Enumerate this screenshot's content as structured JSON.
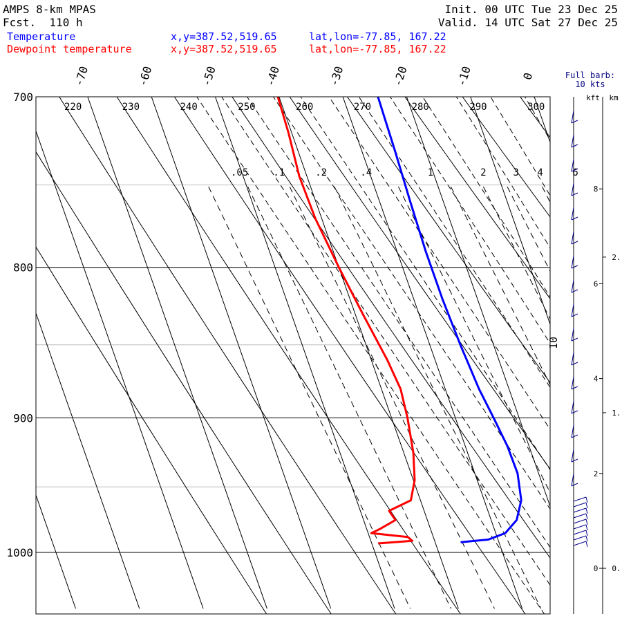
{
  "header": {
    "model": "AMPS 8-km MPAS",
    "fcst": "Fcst.  110 h",
    "init": "Init. 00 UTC Tue 23 Dec 25",
    "valid": "Valid. 14 UTC Sat 27 Dec 25"
  },
  "legend": [
    {
      "name": "Temperature",
      "xy": "x,y=387.52,519.65",
      "latlon": "lat,lon=-77.85, 167.22",
      "color": "#0000ff"
    },
    {
      "name": "Dewpoint temperature",
      "xy": "x,y=387.52,519.65",
      "latlon": "lat,lon=-77.85, 167.22",
      "color": "#ff0000"
    }
  ],
  "barb_note": {
    "line1": "Full barb:",
    "line2": "10 kts"
  },
  "height_axis": {
    "kft_label": "kft",
    "km_label": "km",
    "kft_ticks": [
      {
        "kft": 8,
        "label": "8"
      },
      {
        "kft": 6,
        "label": "6"
      },
      {
        "kft": 4,
        "label": "4"
      },
      {
        "kft": 2,
        "label": "2"
      },
      {
        "kft": 0,
        "label": "0"
      }
    ],
    "km_ticks": [
      {
        "km": 2,
        "label": "2."
      },
      {
        "km": 1,
        "label": "1."
      },
      {
        "km": 0,
        "label": "0."
      }
    ]
  },
  "chart_data": {
    "type": "line",
    "pressure_ticks": [
      {
        "p": 700,
        "label": "700"
      },
      {
        "p": 800,
        "label": "800"
      },
      {
        "p": 900,
        "label": "900"
      },
      {
        "p": 1000,
        "label": "1000"
      }
    ],
    "p_range": [
      700,
      1045
    ],
    "temp_ticks": [
      {
        "t": -70,
        "label": "-70"
      },
      {
        "t": -60,
        "label": "-60"
      },
      {
        "t": -50,
        "label": "-50"
      },
      {
        "t": -40,
        "label": "-40"
      },
      {
        "t": -30,
        "label": "-30"
      },
      {
        "t": -20,
        "label": "-20"
      },
      {
        "t": -10,
        "label": "-10"
      },
      {
        "t": 0,
        "label": "0"
      }
    ],
    "theta_labels": [
      {
        "theta": 220,
        "label": "220"
      },
      {
        "theta": 230,
        "label": "230"
      },
      {
        "theta": 240,
        "label": "240"
      },
      {
        "theta": 250,
        "label": "250"
      },
      {
        "theta": 260,
        "label": "260"
      },
      {
        "theta": 270,
        "label": "270"
      },
      {
        "theta": 280,
        "label": "280"
      },
      {
        "theta": 290,
        "label": "290"
      },
      {
        "theta": 300,
        "label": "300"
      }
    ],
    "mixing_ratio_labels": [
      {
        "w": 0.05,
        "label": ".05"
      },
      {
        "w": 0.1,
        "label": ".1"
      },
      {
        "w": 0.2,
        "label": ".2"
      },
      {
        "w": 0.4,
        "label": ".4"
      },
      {
        "w": 1,
        "label": "1"
      },
      {
        "w": 2,
        "label": "2"
      },
      {
        "w": 3,
        "label": "3"
      },
      {
        "w": 4,
        "label": "4"
      },
      {
        "w": 6,
        "label": "6"
      }
    ],
    "side_label": "10",
    "series": [
      {
        "name": "Temperature",
        "color": "#0000ff",
        "points": [
          {
            "p": 700,
            "t": -24.5
          },
          {
            "p": 730,
            "t": -24.8
          },
          {
            "p": 760,
            "t": -25.2
          },
          {
            "p": 790,
            "t": -25.5
          },
          {
            "p": 820,
            "t": -25.5
          },
          {
            "p": 850,
            "t": -25.2
          },
          {
            "p": 880,
            "t": -24.7
          },
          {
            "p": 900,
            "t": -24.0
          },
          {
            "p": 920,
            "t": -23.4
          },
          {
            "p": 940,
            "t": -23.3
          },
          {
            "p": 960,
            "t": -24.2
          },
          {
            "p": 975,
            "t": -26.0
          },
          {
            "p": 985,
            "t": -28.5
          },
          {
            "p": 990,
            "t": -31.5
          },
          {
            "p": 992,
            "t": -36.0
          }
        ]
      },
      {
        "name": "Dewpoint temperature",
        "color": "#ff0000",
        "points": [
          {
            "p": 700,
            "t": -40.2
          },
          {
            "p": 720,
            "t": -40.5
          },
          {
            "p": 745,
            "t": -41.2
          },
          {
            "p": 770,
            "t": -41.0
          },
          {
            "p": 800,
            "t": -40.0
          },
          {
            "p": 830,
            "t": -38.8
          },
          {
            "p": 860,
            "t": -37.5
          },
          {
            "p": 880,
            "t": -37.0
          },
          {
            "p": 900,
            "t": -37.5
          },
          {
            "p": 925,
            "t": -38.5
          },
          {
            "p": 945,
            "t": -39.8
          },
          {
            "p": 960,
            "t": -41.5
          },
          {
            "p": 968,
            "t": -45.5
          },
          {
            "p": 975,
            "t": -45.0
          },
          {
            "p": 982,
            "t": -48.0
          },
          {
            "p": 985,
            "t": -49.5
          },
          {
            "p": 988,
            "t": -44.0
          },
          {
            "p": 991,
            "t": -43.5
          },
          {
            "p": 993,
            "t": -49.0
          }
        ]
      }
    ]
  }
}
